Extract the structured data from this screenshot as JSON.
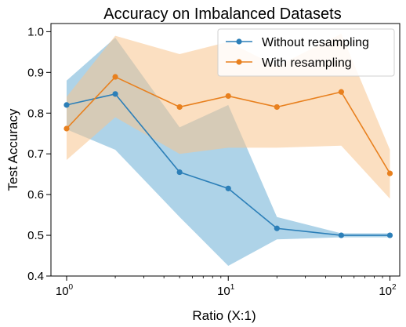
{
  "chart_data": {
    "type": "line",
    "title": "Accuracy on Imbalanced Datasets",
    "xlabel": "Ratio (X:1)",
    "ylabel": "Test Accuracy",
    "x_scale": "log",
    "xlim": [
      0.8,
      115
    ],
    "ylim": [
      0.4,
      1.02
    ],
    "grid": false,
    "legend_position": "top-right",
    "x_ticks": [
      {
        "value": 1,
        "base": "10",
        "exp": "0"
      },
      {
        "value": 10,
        "base": "10",
        "exp": "1"
      },
      {
        "value": 100,
        "base": "10",
        "exp": "2"
      }
    ],
    "y_ticks": [
      0.4,
      0.5,
      0.6,
      0.7,
      0.8,
      0.9,
      1.0
    ],
    "y_tick_labels": [
      "0.4",
      "0.5",
      "0.6",
      "0.7",
      "0.8",
      "0.9",
      "1.0"
    ],
    "x": [
      1,
      2,
      5,
      10,
      20,
      50,
      100
    ],
    "series": [
      {
        "name": "Without resampling",
        "color": "#2c7fb8",
        "band_color": "#6baed6",
        "values": [
          0.82,
          0.847,
          0.655,
          0.615,
          0.517,
          0.5,
          0.5
        ],
        "upper": [
          0.88,
          0.985,
          0.765,
          0.82,
          0.545,
          0.505,
          0.505
        ],
        "lower": [
          0.76,
          0.71,
          0.545,
          0.425,
          0.49,
          0.495,
          0.495
        ]
      },
      {
        "name": "With resampling",
        "color": "#e8801e",
        "band_color": "#f8c48e",
        "values": [
          0.762,
          0.889,
          0.815,
          0.842,
          0.815,
          0.852,
          0.652
        ],
        "upper": [
          0.84,
          0.99,
          0.945,
          0.975,
          0.915,
          0.995,
          0.71
        ],
        "lower": [
          0.685,
          0.79,
          0.7,
          0.715,
          0.715,
          0.72,
          0.59
        ]
      }
    ]
  }
}
